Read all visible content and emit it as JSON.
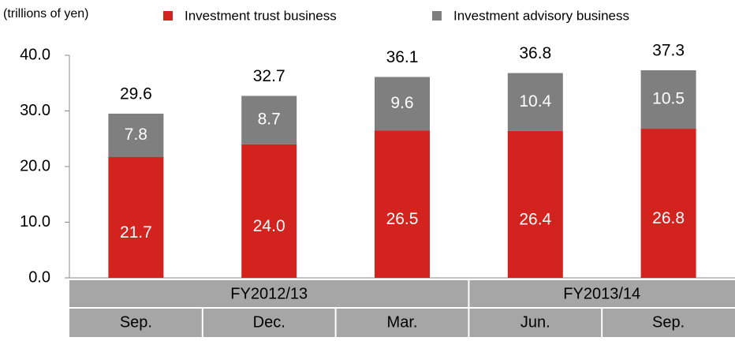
{
  "chart_data": {
    "type": "stacked_bar",
    "y_label": "(trillions of yen)",
    "categories": [
      "Sep.",
      "Dec.",
      "Mar.",
      "Jun.",
      "Sep."
    ],
    "groups": [
      {
        "label": "FY2012/13",
        "span": 3
      },
      {
        "label": "FY2013/14",
        "span": 2
      }
    ],
    "series": [
      {
        "name": "Investment trust business",
        "color": "#d2231f",
        "values": [
          21.7,
          24,
          26.5,
          26.4,
          26.8
        ],
        "value_labels": [
          "21.7",
          "24.0",
          "26.5",
          "26.4",
          "26.8"
        ]
      },
      {
        "name": "Investment advisory business",
        "color": "#7f7f7f",
        "values": [
          7.8,
          8.7,
          9.6,
          10.4,
          10.5
        ],
        "value_labels": [
          "7.8",
          "8.7",
          "9.6",
          "10.4",
          "10.5"
        ]
      }
    ],
    "totals": [
      29.6,
      32.7,
      36.1,
      36.8,
      37.3
    ],
    "ylim": [
      0,
      40
    ],
    "yticks": [
      {
        "value": 0,
        "label": "0.0"
      },
      {
        "value": 10,
        "label": "10.0"
      },
      {
        "value": 20,
        "label": "20.0"
      },
      {
        "value": 30,
        "label": "30.0"
      },
      {
        "value": 40,
        "label": "40.0"
      }
    ]
  }
}
